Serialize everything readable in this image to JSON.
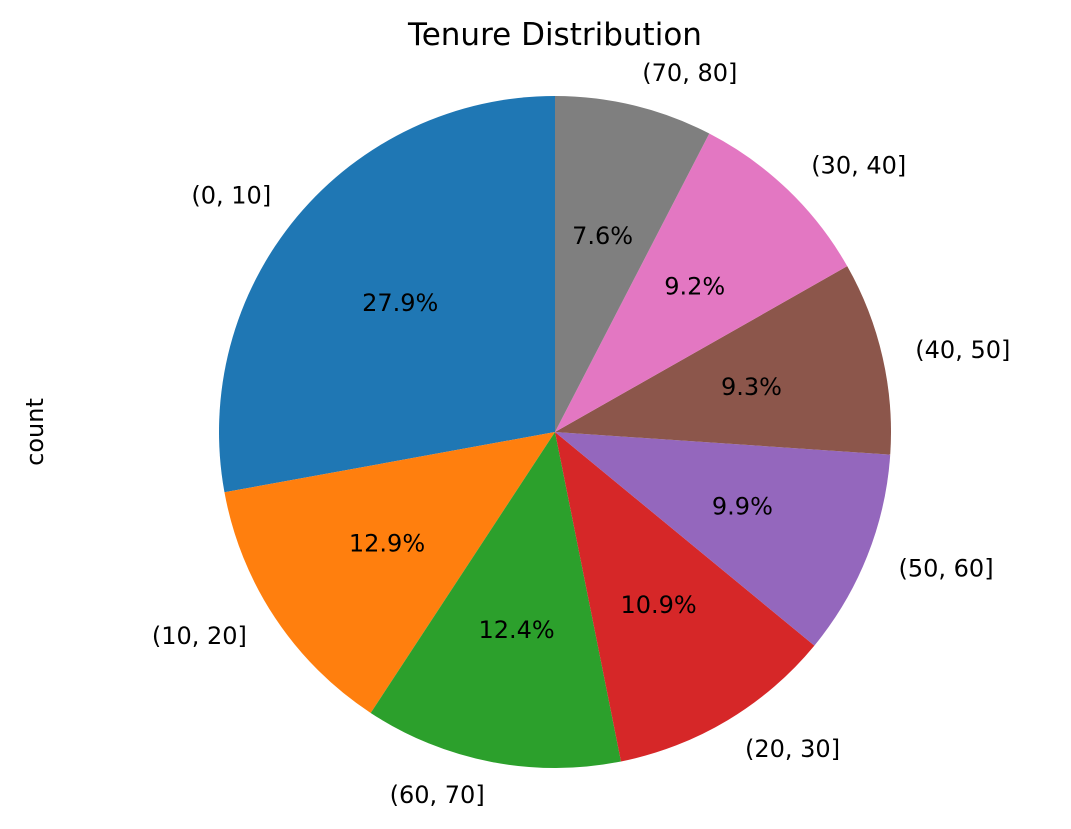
{
  "chart_data": {
    "type": "pie",
    "title": "Tenure Distribution",
    "ylabel": "count",
    "slices": [
      {
        "label": "(0, 10]",
        "percent": 27.9,
        "percent_label": "27.9%",
        "color": "#1f77b4"
      },
      {
        "label": "(10, 20]",
        "percent": 12.9,
        "percent_label": "12.9%",
        "color": "#ff7f0e"
      },
      {
        "label": "(60, 70]",
        "percent": 12.4,
        "percent_label": "12.4%",
        "color": "#2ca02c"
      },
      {
        "label": "(20, 30]",
        "percent": 10.9,
        "percent_label": "10.9%",
        "color": "#d62728"
      },
      {
        "label": "(50, 60]",
        "percent": 9.9,
        "percent_label": "9.9%",
        "color": "#9467bd"
      },
      {
        "label": "(40, 50]",
        "percent": 9.3,
        "percent_label": "9.3%",
        "color": "#8c564b"
      },
      {
        "label": "(30, 40]",
        "percent": 9.2,
        "percent_label": "9.2%",
        "color": "#e377c2"
      },
      {
        "label": "(70, 80]",
        "percent": 7.6,
        "percent_label": "7.6%",
        "color": "#7f7f7f"
      }
    ],
    "start_angle_deg": 90,
    "direction": "counterclockwise",
    "legend": "none"
  }
}
